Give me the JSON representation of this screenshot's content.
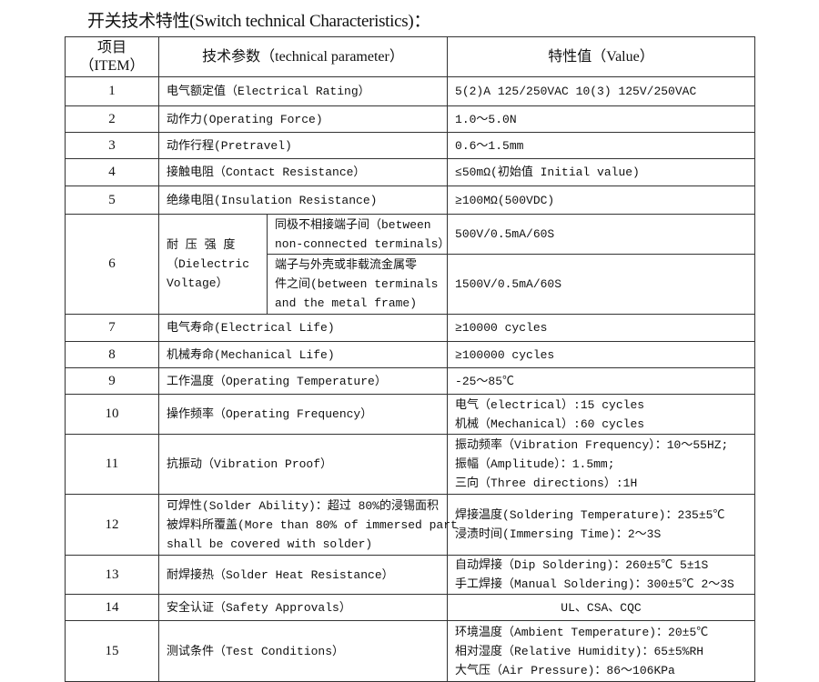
{
  "title": "开关技术特性(Switch technical Characteristics)：",
  "header": {
    "item": [
      "项目",
      "（ITEM）"
    ],
    "parameter": "技术参数（technical parameter）",
    "value": "特性值（Value）"
  },
  "rows": [
    {
      "no": "1",
      "param": [
        "电气额定值（Electrical Rating）"
      ],
      "value": [
        "5(2)A 125/250VAC 10(3) 125V/250VAC"
      ]
    },
    {
      "no": "2",
      "param": [
        "动作力(Operating Force)"
      ],
      "value": [
        "1.0～5.0N"
      ]
    },
    {
      "no": "3",
      "param": [
        "动作行程(Pretravel)"
      ],
      "value": [
        "0.6～1.5mm"
      ]
    },
    {
      "no": "4",
      "param": [
        "接触电阻（Contact  Resistance）"
      ],
      "value": [
        "≤50mΩ(初始值 Initial value)"
      ]
    },
    {
      "no": "5",
      "param": [
        "绝缘电阻(Insulation Resistance)"
      ],
      "value": [
        "≥100MΩ(500VDC)"
      ]
    },
    {
      "no": "6",
      "param": [
        "耐 压 强 度",
        "（Dielectric",
        "Voltage）"
      ],
      "sub": [
        {
          "param": [
            "同极不相接端子间（between",
            "non-connected terminals）"
          ],
          "value": [
            "500V/0.5mA/60S"
          ]
        },
        {
          "param": [
            "端子与外壳或非载流金属零",
            "件之间(between terminals",
            "and the metal frame)"
          ],
          "value": [
            "1500V/0.5mA/60S"
          ]
        }
      ]
    },
    {
      "no": "7",
      "param": [
        "电气寿命(Electrical Life)"
      ],
      "value": [
        "≥10000 cycles"
      ]
    },
    {
      "no": "8",
      "param": [
        "机械寿命(Mechanical Life)"
      ],
      "value": [
        "≥100000 cycles"
      ]
    },
    {
      "no": "9",
      "param": [
        "工作温度（Operating Temperature）"
      ],
      "value": [
        "-25～85℃"
      ]
    },
    {
      "no": "10",
      "param": [
        "操作频率（Operating Frequency）"
      ],
      "value": [
        "电气（electrical）:15 cycles",
        "机械（Mechanical）:60 cycles"
      ]
    },
    {
      "no": "11",
      "param": [
        "抗振动（Vibration Proof）"
      ],
      "value": [
        " 振动频率（Vibration Frequency）：10～55HZ;",
        "振幅（Amplitude）：1.5mm;",
        "三向（Three directions）:1H"
      ]
    },
    {
      "no": "12",
      "param": [
        "可焊性(Solder Ability)：超过 80%的浸锡面积",
        "被焊料所覆盖(More than 80% of immersed part",
        "shall be covered with solder)"
      ],
      "value": [
        "焊接温度(Soldering Temperature)：235±5℃",
        "浸渍时间(Immersing Time)：2～3S"
      ]
    },
    {
      "no": "13",
      "param": [
        "耐焊接热（Solder Heat Resistance）"
      ],
      "value": [
        "自动焊接（Dip Soldering)：260±5℃ 5±1S",
        "手工焊接（Manual Soldering)：300±5℃ 2～3S"
      ]
    },
    {
      "no": "14",
      "param": [
        "安全认证（Safety Approvals）"
      ],
      "value": [
        "UL、CSA、CQC"
      ]
    },
    {
      "no": "15",
      "param": [
        "测试条件（Test Conditions）"
      ],
      "value": [
        "环境温度（Ambient Temperature)：20±5℃",
        "相对湿度（Relative Humidity)：65±5%RH",
        "大气压（Air Pressure)：86～106KPa"
      ]
    }
  ]
}
